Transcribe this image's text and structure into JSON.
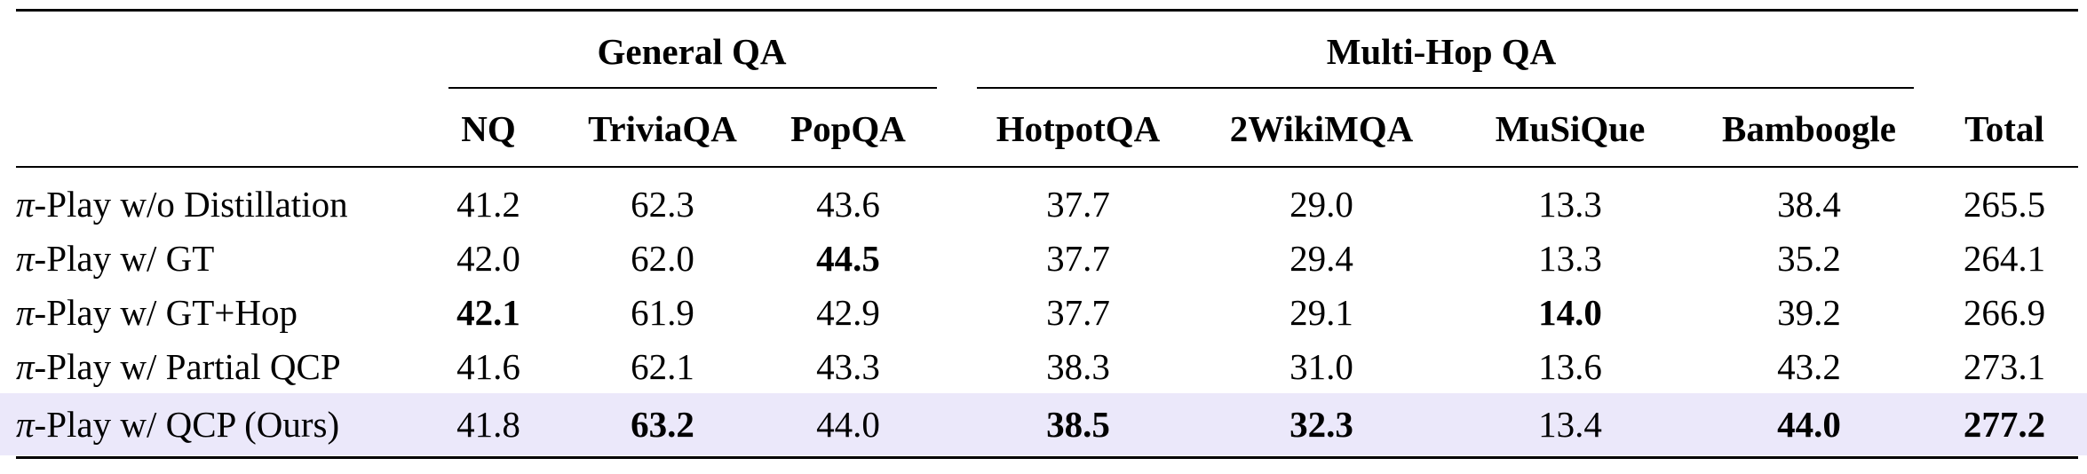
{
  "table": {
    "group_headers": [
      "General QA",
      "Multi-Hop QA"
    ],
    "columns": [
      "NQ",
      "TriviaQA",
      "PopQA",
      "HotpotQA",
      "2WikiMQA",
      "MuSiQue",
      "Bamboogle",
      "Total"
    ],
    "rows": [
      {
        "method_prefix": "π",
        "method_suffix": "-Play w/o Distillation",
        "values": [
          "41.2",
          "62.3",
          "43.6",
          "37.7",
          "29.0",
          "13.3",
          "38.4",
          "265.5"
        ],
        "bold": [
          false,
          false,
          false,
          false,
          false,
          false,
          false,
          false
        ]
      },
      {
        "method_prefix": "π",
        "method_suffix": "-Play w/ GT",
        "values": [
          "42.0",
          "62.0",
          "44.5",
          "37.7",
          "29.4",
          "13.3",
          "35.2",
          "264.1"
        ],
        "bold": [
          false,
          false,
          true,
          false,
          false,
          false,
          false,
          false
        ]
      },
      {
        "method_prefix": "π",
        "method_suffix": "-Play w/ GT+Hop",
        "values": [
          "42.1",
          "61.9",
          "42.9",
          "37.7",
          "29.1",
          "14.0",
          "39.2",
          "266.9"
        ],
        "bold": [
          true,
          false,
          false,
          false,
          false,
          true,
          false,
          false
        ]
      },
      {
        "method_prefix": "π",
        "method_suffix": "-Play w/ Partial QCP",
        "values": [
          "41.6",
          "62.1",
          "43.3",
          "38.3",
          "31.0",
          "13.6",
          "43.2",
          "273.1"
        ],
        "bold": [
          false,
          false,
          false,
          false,
          false,
          false,
          false,
          false
        ]
      },
      {
        "method_prefix": "π",
        "method_suffix": "-Play w/ QCP (Ours)",
        "values": [
          "41.8",
          "63.2",
          "44.0",
          "38.5",
          "32.3",
          "13.4",
          "44.0",
          "277.2"
        ],
        "bold": [
          false,
          true,
          false,
          true,
          true,
          false,
          true,
          true
        ],
        "highlight": true
      }
    ],
    "highlight_color": "#ebe8fa"
  }
}
